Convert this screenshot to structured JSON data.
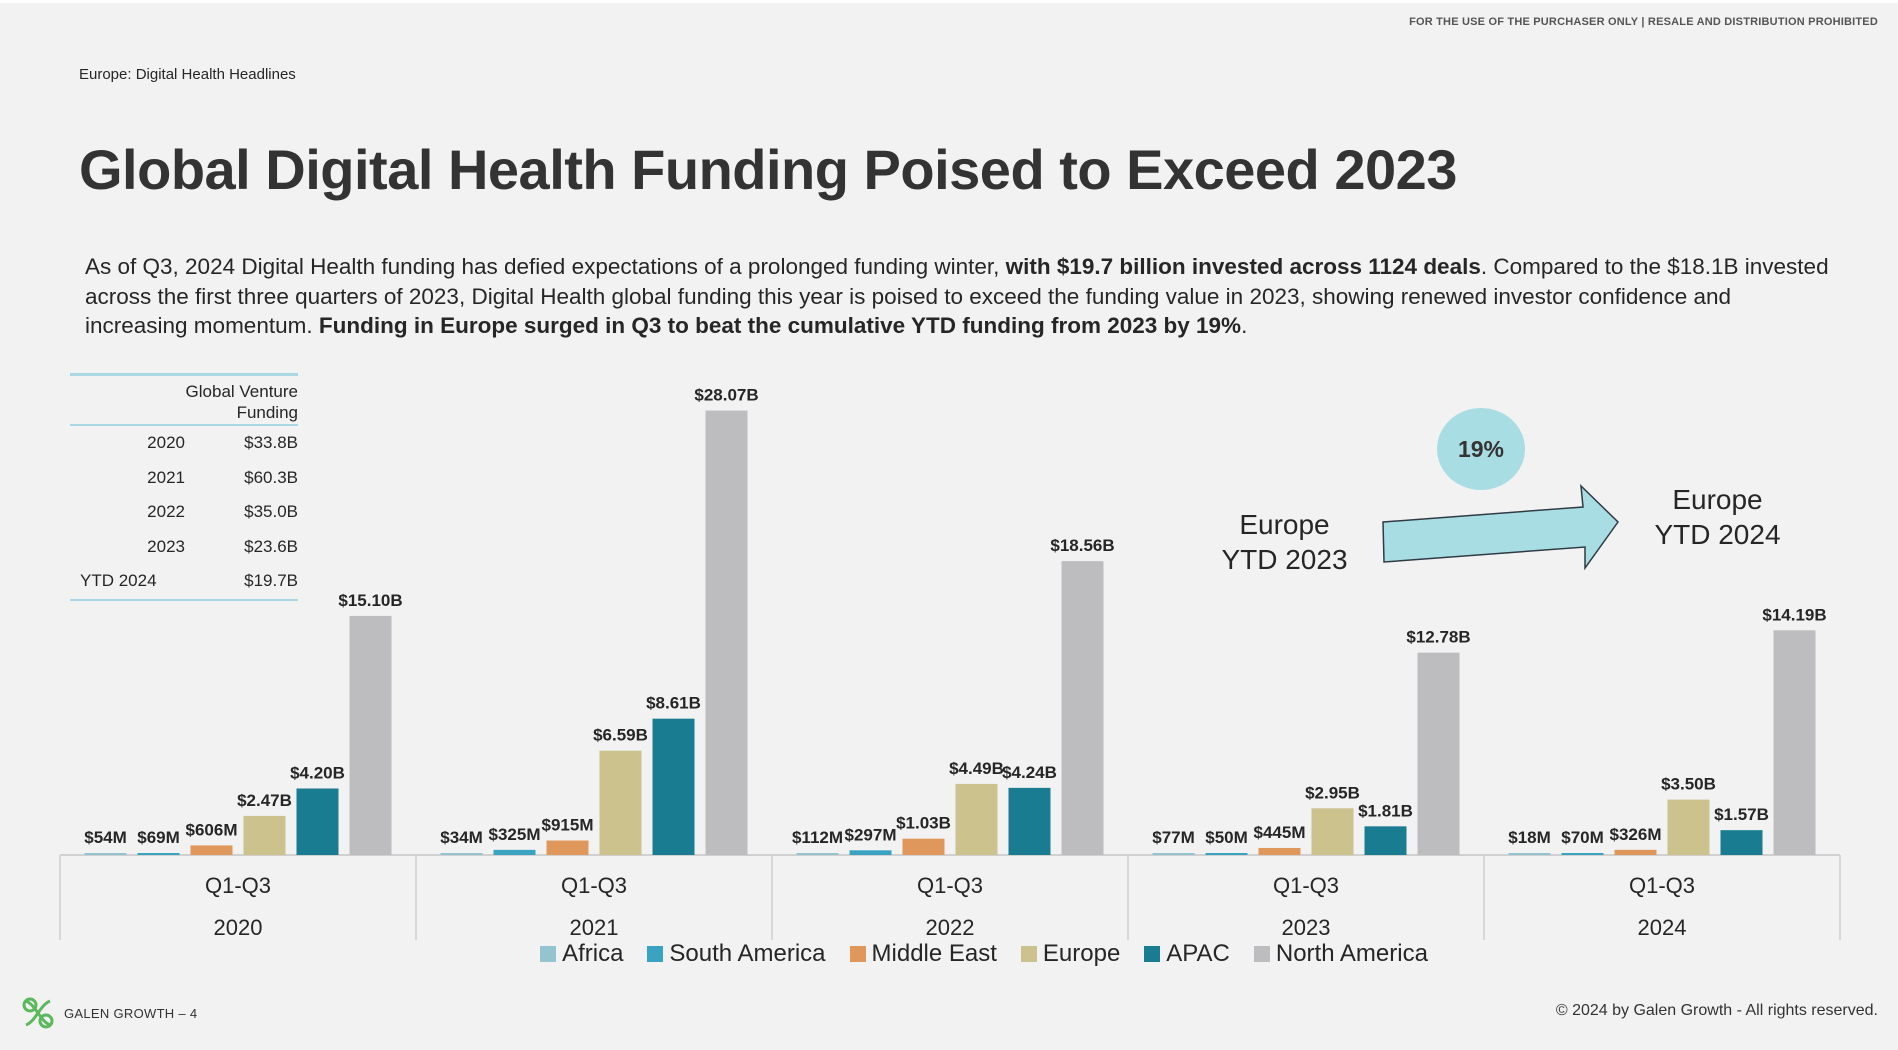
{
  "disclaimer": "FOR THE USE OF THE PURCHASER ONLY | RESALE AND DISTRIBUTION PROHIBITED",
  "section_label": "Europe: Digital Health Headlines",
  "title": "Global Digital Health Funding Poised to Exceed 2023",
  "intro": {
    "p1": "As of Q3, 2024 Digital Health funding has defied expectations of a prolonged funding winter, ",
    "b1": "with $19.7 billion invested across 1124 deals",
    "p2": ". Compared to the $18.1B invested across the first three quarters of 2023, Digital Health global funding this year is poised to exceed the funding value in 2023, showing renewed investor confidence and increasing momentum. ",
    "b2": "Funding in Europe surged in Q3 to beat the cumulative YTD funding from 2023 by 19%",
    "p3": "."
  },
  "funding_table": {
    "header_line1": "Global Venture",
    "header_line2": "Funding",
    "rows": [
      {
        "year": "2020",
        "value": "$33.8B"
      },
      {
        "year": "2021",
        "value": "$60.3B"
      },
      {
        "year": "2022",
        "value": "$35.0B"
      },
      {
        "year": "2023",
        "value": "$23.6B"
      },
      {
        "year": "YTD 2024",
        "value": "$19.7B"
      }
    ]
  },
  "callout": {
    "pct": "19%",
    "left_line1": "Europe",
    "left_line2": "YTD 2023",
    "right_line1": "Europe",
    "right_line2": "YTD 2024",
    "arrow_color": "#a9dde4"
  },
  "chart_data": {
    "type": "bar",
    "title": "",
    "xlabel": "",
    "ylabel": "",
    "ylim": [
      0,
      30
    ],
    "unit": "$B",
    "grid": false,
    "legend_position": "bottom",
    "groups": [
      {
        "period": "Q1-Q3",
        "year": "2020"
      },
      {
        "period": "Q1-Q3",
        "year": "2021"
      },
      {
        "period": "Q1-Q3",
        "year": "2022"
      },
      {
        "period": "Q1-Q3",
        "year": "2023"
      },
      {
        "period": "Q1-Q3",
        "year": "2024"
      }
    ],
    "series": [
      {
        "name": "Africa",
        "color": "#93c4cf",
        "values": [
          0.054,
          0.034,
          0.112,
          0.077,
          0.018
        ],
        "labels": [
          "$54M",
          "$34M",
          "$112M",
          "$77M",
          "$18M"
        ]
      },
      {
        "name": "South America",
        "color": "#3ba3c2",
        "values": [
          0.069,
          0.325,
          0.297,
          0.05,
          0.07
        ],
        "labels": [
          "$69M",
          "$325M",
          "$297M",
          "$50M",
          "$70M"
        ]
      },
      {
        "name": "Middle East",
        "color": "#e0975c",
        "values": [
          0.606,
          0.915,
          1.03,
          0.445,
          0.326
        ],
        "labels": [
          "$606M",
          "$915M",
          "$1.03B",
          "$445M",
          "$326M"
        ]
      },
      {
        "name": "Europe",
        "color": "#cbc28d",
        "values": [
          2.47,
          6.59,
          4.49,
          2.95,
          3.5
        ],
        "labels": [
          "$2.47B",
          "$6.59B",
          "$4.49B",
          "$2.95B",
          "$3.50B"
        ]
      },
      {
        "name": "APAC",
        "color": "#1a7c90",
        "values": [
          4.2,
          8.61,
          4.24,
          1.81,
          1.57
        ],
        "labels": [
          "$4.20B",
          "$8.61B",
          "$4.24B",
          "$1.81B",
          "$1.57B"
        ]
      },
      {
        "name": "North America",
        "color": "#bdbdbf",
        "values": [
          15.1,
          28.07,
          18.56,
          12.78,
          14.19
        ],
        "labels": [
          "$15.10B",
          "$28.07B",
          "$18.56B",
          "$12.78B",
          "$14.19B"
        ]
      }
    ]
  },
  "footer": {
    "left": "GALEN GROWTH – 4",
    "right": "© 2024 by Galen Growth  - All rights reserved.",
    "logo_color": "#5cb85c"
  }
}
